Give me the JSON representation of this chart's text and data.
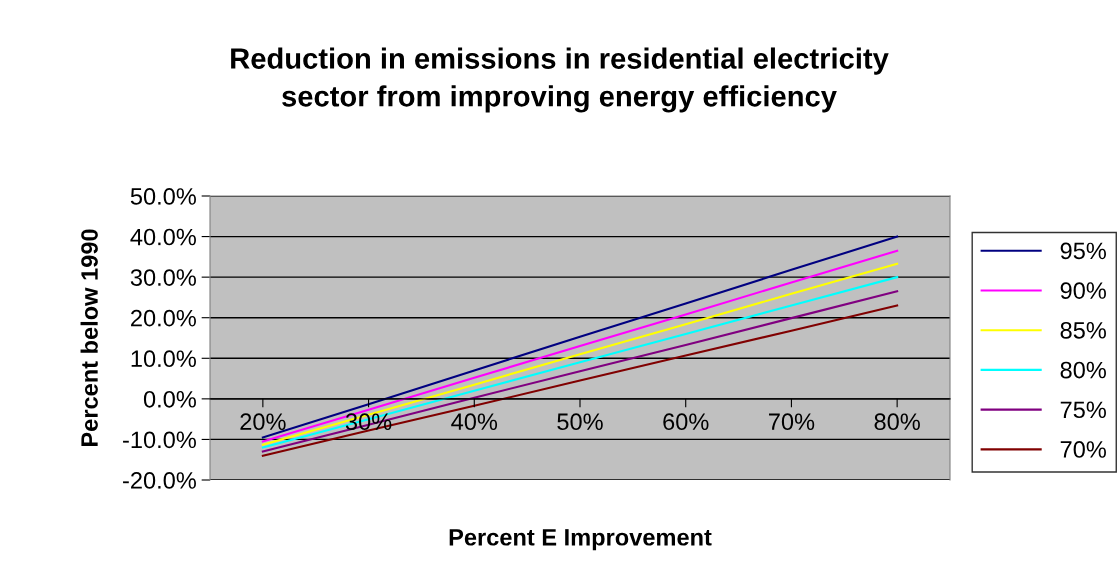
{
  "chart_data": {
    "type": "line",
    "title": "Reduction in emissions in residential electricity\nsector from improving energy efficiency",
    "xlabel": "Percent E Improvement",
    "ylabel": "Percent below 1990",
    "categories": [
      "20%",
      "30%",
      "40%",
      "50%",
      "60%",
      "70%",
      "80%"
    ],
    "series": [
      {
        "name": "95%",
        "color": "#000080",
        "values": [
          -9.5,
          -1.3,
          7.0,
          15.3,
          23.5,
          31.8,
          40.0
        ]
      },
      {
        "name": "90%",
        "color": "#ff00ff",
        "values": [
          -10.5,
          -2.7,
          5.2,
          13.0,
          20.8,
          28.7,
          36.5
        ]
      },
      {
        "name": "85%",
        "color": "#ffff00",
        "values": [
          -11.3,
          -3.9,
          3.5,
          11.0,
          18.4,
          25.9,
          33.3
        ]
      },
      {
        "name": "80%",
        "color": "#00ffff",
        "values": [
          -12.0,
          -5.0,
          2.0,
          9.0,
          16.0,
          23.0,
          30.0
        ]
      },
      {
        "name": "75%",
        "color": "#800080",
        "values": [
          -13.0,
          -6.4,
          0.3,
          6.8,
          13.3,
          19.9,
          26.5
        ]
      },
      {
        "name": "70%",
        "color": "#800000",
        "values": [
          -14.0,
          -7.8,
          -1.7,
          4.5,
          10.7,
          16.8,
          23.0
        ]
      }
    ],
    "ylim": [
      -20,
      50
    ],
    "yticks": [
      {
        "value": -20,
        "label": "-20.0%"
      },
      {
        "value": -10,
        "label": "-10.0%"
      },
      {
        "value": 0,
        "label": "0.0%"
      },
      {
        "value": 10,
        "label": "10.0%"
      },
      {
        "value": 20,
        "label": "20.0%"
      },
      {
        "value": 30,
        "label": "30.0%"
      },
      {
        "value": 40,
        "label": "40.0%"
      },
      {
        "value": 50,
        "label": "50.0%"
      }
    ],
    "grid": "y",
    "legend": "right",
    "marker": "none",
    "line_style": "solid"
  }
}
